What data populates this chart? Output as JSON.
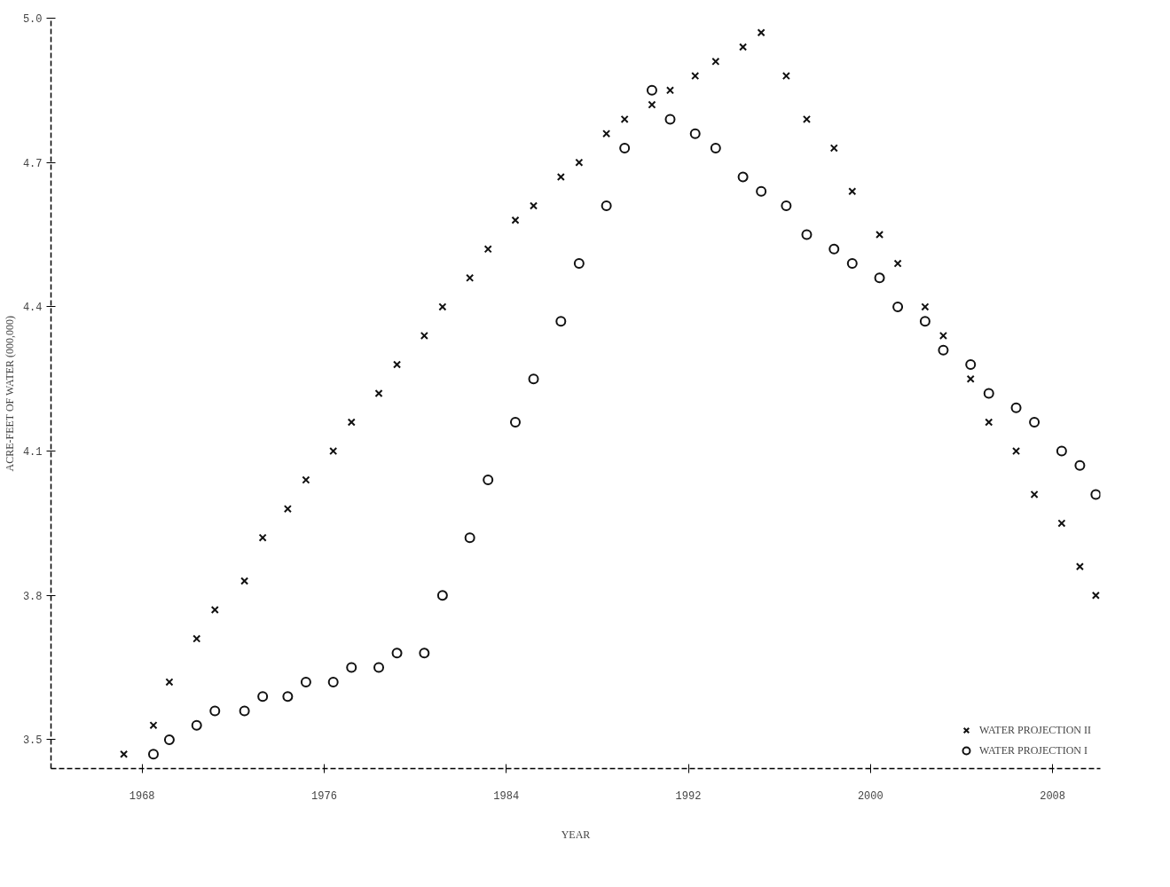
{
  "chart_data": {
    "type": "scatter",
    "xlabel": "YEAR",
    "ylabel": "ACRE-FEET OF WATER (000,000)",
    "xlim": [
      1964,
      2010.1
    ],
    "ylim": [
      3.44,
      5.0
    ],
    "xticks": [
      1968,
      1976,
      1984,
      1992,
      2000,
      2008
    ],
    "yticks": [
      3.5,
      3.8,
      4.1,
      4.4,
      4.7,
      {
        "value": 5.0,
        "label": "5.0"
      }
    ],
    "grid": false,
    "legend": "bottom right",
    "series": [
      {
        "name": "WATER PROJECTION II",
        "color": "#111111",
        "marker": "cross",
        "x": [
          1967.2,
          1968.5,
          1969.2,
          1970.4,
          1971.2,
          1972.5,
          1973.3,
          1974.4,
          1975.2,
          1976.4,
          1977.2,
          1978.4,
          1979.2,
          1980.4,
          1981.2,
          1982.4,
          1983.2,
          1984.4,
          1985.2,
          1986.4,
          1987.2,
          1988.4,
          1989.2,
          1990.4,
          1991.2,
          1992.3,
          1993.2,
          1994.4,
          1995.2,
          1996.3,
          1997.2,
          1998.4,
          1999.2,
          2000.4,
          2001.2,
          2002.4,
          2003.2,
          2004.4,
          2005.2,
          2006.4,
          2007.2,
          2008.4,
          2009.2,
          2009.9
        ],
        "values": [
          3.47,
          3.53,
          3.62,
          3.71,
          3.77,
          3.83,
          3.92,
          3.98,
          4.04,
          4.1,
          4.16,
          4.22,
          4.28,
          4.34,
          4.4,
          4.46,
          4.52,
          4.58,
          4.61,
          4.67,
          4.7,
          4.76,
          4.79,
          4.82,
          4.85,
          4.88,
          4.91,
          4.94,
          4.97,
          4.88,
          4.79,
          4.73,
          4.64,
          4.55,
          4.49,
          4.4,
          4.34,
          4.25,
          4.16,
          4.1,
          4.01,
          3.95,
          3.86,
          3.8
        ]
      },
      {
        "name": "WATER PROJECTION I",
        "color": "#111111",
        "marker": "circle",
        "x": [
          1968.5,
          1969.2,
          1970.4,
          1971.2,
          1972.5,
          1973.3,
          1974.4,
          1975.2,
          1976.4,
          1977.2,
          1978.4,
          1979.2,
          1980.4,
          1981.2,
          1982.4,
          1983.2,
          1984.4,
          1985.2,
          1986.4,
          1987.2,
          1988.4,
          1989.2,
          1990.4,
          1991.2,
          1992.3,
          1993.2,
          1994.4,
          1995.2,
          1996.3,
          1997.2,
          1998.4,
          1999.2,
          2000.4,
          2001.2,
          2002.4,
          2003.2,
          2004.4,
          2005.2,
          2006.4,
          2007.2,
          2008.4,
          2009.2,
          2009.9
        ],
        "values": [
          3.47,
          3.5,
          3.53,
          3.56,
          3.56,
          3.59,
          3.59,
          3.62,
          3.62,
          3.65,
          3.65,
          3.68,
          3.68,
          3.8,
          3.92,
          4.04,
          4.16,
          4.25,
          4.37,
          4.49,
          4.61,
          4.73,
          4.85,
          4.79,
          4.76,
          4.73,
          4.67,
          4.64,
          4.61,
          4.55,
          4.52,
          4.49,
          4.46,
          4.4,
          4.37,
          4.31,
          4.28,
          4.22,
          4.19,
          4.16,
          4.1,
          4.07,
          4.01
        ]
      }
    ]
  }
}
